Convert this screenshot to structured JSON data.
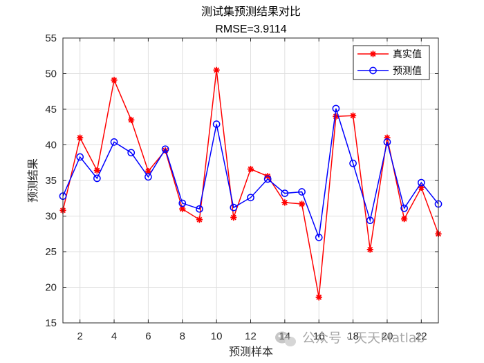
{
  "chart_data": {
    "type": "line",
    "title": "测试集预测结果对比",
    "subtitle": "RMSE=3.9114",
    "xlabel": "预测样本",
    "ylabel": "预测结果",
    "xlim": [
      1,
      23
    ],
    "ylim": [
      15,
      55
    ],
    "xticks": [
      2,
      4,
      6,
      8,
      10,
      12,
      14,
      16,
      18,
      20,
      22
    ],
    "yticks": [
      15,
      20,
      25,
      30,
      35,
      40,
      45,
      50,
      55
    ],
    "grid": true,
    "legend_position": "top-right",
    "x": [
      1,
      2,
      3,
      4,
      5,
      6,
      7,
      8,
      9,
      10,
      11,
      12,
      13,
      14,
      15,
      16,
      17,
      18,
      19,
      20,
      21,
      22,
      23
    ],
    "series": [
      {
        "name": "真实值",
        "color": "#ff0000",
        "marker": "asterisk",
        "values": [
          30.8,
          41.0,
          36.4,
          49.1,
          43.5,
          36.3,
          39.2,
          31.0,
          29.5,
          50.5,
          29.8,
          36.6,
          35.6,
          31.9,
          31.7,
          18.6,
          44.0,
          44.1,
          25.3,
          41.0,
          29.6,
          34.0,
          27.5
        ]
      },
      {
        "name": "预测值",
        "color": "#0000ff",
        "marker": "circle",
        "values": [
          32.8,
          38.3,
          35.3,
          40.4,
          38.9,
          35.5,
          39.4,
          31.8,
          31.0,
          42.9,
          31.2,
          32.6,
          35.2,
          33.2,
          33.4,
          27.0,
          45.1,
          37.4,
          29.4,
          40.4,
          31.1,
          34.7,
          31.7
        ]
      }
    ]
  },
  "watermark": {
    "text": "公众号 · 天天Matlab",
    "icon": "wechat-icon"
  }
}
